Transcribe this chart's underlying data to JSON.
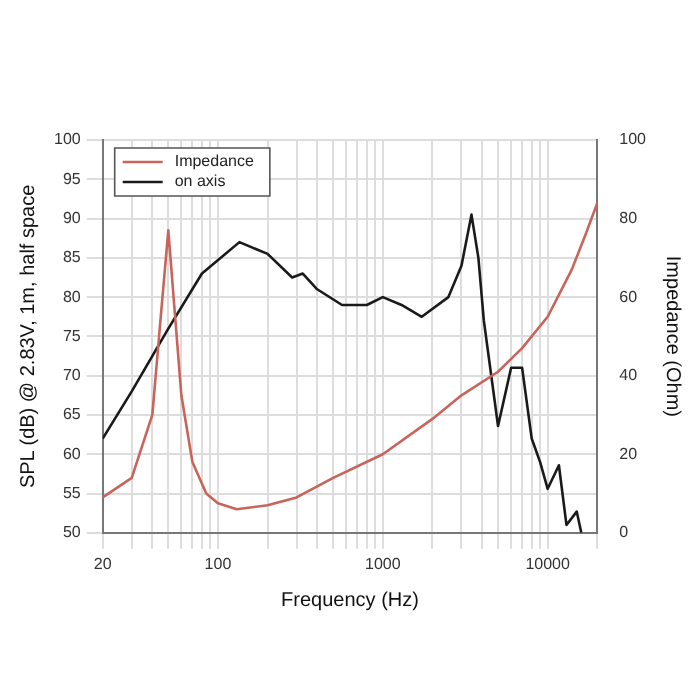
{
  "chart_data": {
    "type": "line",
    "xlabel": "Frequency (Hz)",
    "ylabel": "SPL (dB) @ 2.83V, 1m, half space",
    "y2label": "Impedance (Ohm)",
    "log": "x",
    "grid": true,
    "legend": "top left",
    "marker": "none",
    "line_style": "solid",
    "xlim": [
      20,
      20000
    ],
    "xticks": [
      20,
      {
        "value": 30,
        "label": null
      },
      {
        "value": 40,
        "label": null
      },
      {
        "value": 50,
        "label": null
      },
      {
        "value": 60,
        "label": null
      },
      {
        "value": 70,
        "label": null
      },
      {
        "value": 80,
        "label": null
      },
      {
        "value": 90,
        "label": null
      },
      100,
      {
        "value": 200,
        "label": null
      },
      {
        "value": 300,
        "label": null
      },
      {
        "value": 400,
        "label": null
      },
      {
        "value": 500,
        "label": null
      },
      {
        "value": 600,
        "label": null
      },
      {
        "value": 700,
        "label": null
      },
      {
        "value": 800,
        "label": null
      },
      {
        "value": 900,
        "label": null
      },
      1000,
      {
        "value": 2000,
        "label": null
      },
      {
        "value": 3000,
        "label": null
      },
      {
        "value": 4000,
        "label": null
      },
      {
        "value": 5000,
        "label": null
      },
      {
        "value": 6000,
        "label": null
      },
      {
        "value": 7000,
        "label": null
      },
      {
        "value": 8000,
        "label": null
      },
      {
        "value": 9000,
        "label": null
      },
      10000,
      {
        "value": 20000,
        "label": null
      }
    ],
    "ylim": [
      50,
      100
    ],
    "yticks": [
      50,
      55,
      60,
      65,
      70,
      75,
      80,
      85,
      90,
      95,
      100
    ],
    "y2lim": [
      0,
      100
    ],
    "y2ticks": [
      0,
      20,
      40,
      60,
      80,
      100
    ],
    "series": [
      {
        "name": "Impedance",
        "color": "#c8645a",
        "axis": "y2",
        "x": [
          20,
          30,
          40,
          45,
          50,
          55,
          60,
          70,
          85,
          100,
          130,
          200,
          300,
          500,
          1000,
          2000,
          3000,
          5000,
          7000,
          10000,
          14000,
          17000,
          20000
        ],
        "values": [
          9,
          14,
          30,
          55,
          77,
          55,
          35,
          18,
          10,
          7.5,
          6,
          7,
          9,
          14,
          20,
          29,
          35,
          41,
          47,
          55,
          67,
          76,
          84
        ]
      },
      {
        "name": "on axis",
        "color": "#1a1a1a",
        "x": [
          20,
          30,
          50,
          80,
          135,
          200,
          282,
          327,
          400,
          566,
          800,
          1000,
          1300,
          1723,
          2500,
          3000,
          3450,
          3800,
          4100,
          5000,
          6000,
          7000,
          8000,
          9000,
          10000,
          11700,
          13000,
          15000,
          16000
        ],
        "values": [
          62,
          68,
          76,
          83,
          87,
          85.5,
          82.5,
          83,
          81,
          79,
          79,
          80,
          79,
          77.5,
          80,
          84,
          90.5,
          85,
          77,
          63.6,
          71,
          71,
          62,
          59,
          55.6,
          58.6,
          51,
          52.7,
          50
        ]
      }
    ]
  }
}
